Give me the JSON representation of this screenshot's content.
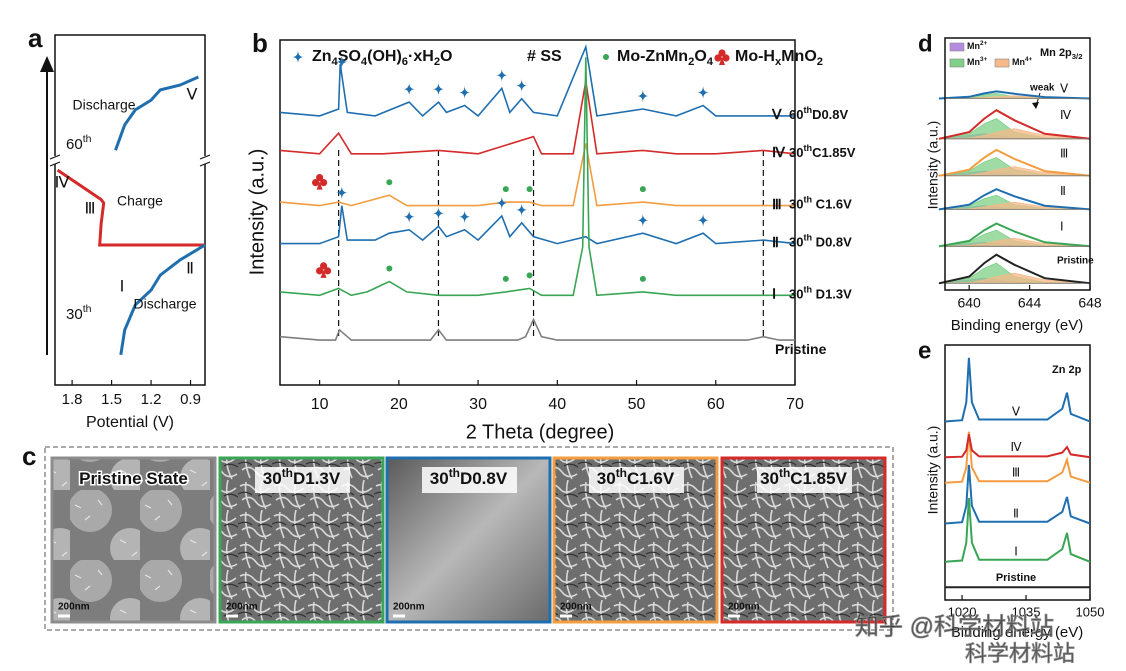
{
  "chart_data": [
    {
      "panel": "a",
      "type": "line",
      "xlabel": "Potential (V)",
      "xlim": [
        1.93,
        0.79
      ],
      "xticks": [
        1.8,
        1.5,
        1.2,
        0.9
      ],
      "ylim": [
        0,
        100
      ],
      "series": [
        {
          "name": "Discharge",
          "color": "#1f6fb0",
          "x": [
            1.47,
            1.4,
            1.32,
            1.2,
            1.13,
            0.98,
            0.84
          ],
          "values": [
            67.1,
            74.3,
            78.6,
            81.4,
            84.3,
            85.7,
            88
          ]
        },
        {
          "name": "Charge",
          "color": "#d42a2a",
          "x": [
            0.79,
            1.59,
            1.58,
            1.56,
            1.58,
            1.91
          ],
          "values": [
            40,
            40,
            46,
            52,
            53,
            61.4
          ]
        },
        {
          "name": "Discharge",
          "color": "#1f6fb0",
          "x": [
            1.43,
            1.4,
            1.32,
            1.2,
            1.13,
            0.98,
            0.79
          ],
          "values": [
            8.6,
            15.7,
            22.9,
            27.1,
            31.4,
            35.7,
            40
          ]
        }
      ],
      "cycles": [
        [
          "60",
          "th"
        ],
        [
          "30",
          "th"
        ]
      ],
      "stages": [
        {
          "label": "Ⅴ",
          "color": "#1f6fb0"
        },
        {
          "label": "Ⅳ",
          "color": "#d42a2a"
        },
        {
          "label": "Ⅲ",
          "color": "#f39c40"
        },
        {
          "label": "Ⅱ",
          "color": "#1f6fb0"
        },
        {
          "label": "Ⅰ",
          "color": "#3aa655"
        }
      ]
    },
    {
      "panel": "b",
      "type": "line",
      "xlabel": "2 Theta (degree)",
      "ylabel": "Intensity (a.u.)",
      "xlim": [
        5,
        70
      ],
      "xticks": [
        10,
        20,
        30,
        40,
        50,
        60,
        70
      ],
      "ylim": [
        0,
        100
      ],
      "legend": [
        {
          "symbol": "diamond",
          "color": "#1f6fb0",
          "text": [
            "Zn",
            "4",
            "SO",
            "4",
            "(OH)",
            "6",
            "·xH",
            "2",
            "O"
          ]
        },
        {
          "text": [
            "# SS"
          ]
        },
        {
          "symbol": "dot",
          "color": "#3aa655",
          "text": [
            "Mo-ZnMn",
            "2",
            "O",
            "4"
          ]
        },
        {
          "symbol": "club",
          "color": "#d42a2a",
          "text": [
            "Mo-H",
            "x",
            "MnO",
            "2"
          ]
        }
      ],
      "dashed_lines": [
        12.4,
        25,
        37,
        66
      ],
      "series": [
        {
          "name": "Ⅴ",
          "cycle": [
            "60",
            "th",
            "D0.8V"
          ],
          "color": "#1f6fb0",
          "x": [
            5,
            10,
            12.4,
            12.6,
            13.5,
            17,
            21.3,
            23,
            25,
            26,
            28.3,
            30,
            33,
            34,
            35.5,
            37,
            40,
            43.6,
            45,
            50.8,
            55,
            58.4,
            60,
            66,
            70
          ],
          "values": [
            79,
            78,
            80,
            93,
            79,
            78,
            82,
            78,
            82,
            79,
            81,
            78,
            86,
            79,
            83,
            79,
            78,
            98,
            78,
            80,
            78,
            81,
            78,
            78,
            78
          ],
          "diamonds": [
            12.8,
            21.3,
            25,
            28.3,
            33,
            35.5,
            50.8,
            58.4
          ]
        },
        {
          "name": "Ⅳ",
          "cycle": [
            "30",
            "th",
            "C1.85V"
          ],
          "color": "#d42a2a",
          "x": [
            5,
            10,
            12.4,
            14,
            18,
            25,
            30,
            37,
            38,
            42,
            43.6,
            45,
            50.8,
            55,
            60,
            66,
            70
          ],
          "values": [
            68,
            67,
            73,
            67,
            67,
            68,
            67,
            72,
            67,
            67,
            88,
            67,
            68,
            67,
            67,
            68,
            67
          ]
        },
        {
          "name": "Ⅲ",
          "cycle": [
            "30",
            "th",
            " C1.6V"
          ],
          "color": "#f39c40",
          "x": [
            5,
            10,
            12.4,
            14,
            18.8,
            21,
            25,
            30,
            33.5,
            36.5,
            38,
            42,
            43.6,
            45,
            50.8,
            55,
            60,
            66,
            70
          ],
          "values": [
            53,
            52,
            53,
            52,
            55,
            52,
            52,
            52,
            53,
            53,
            52,
            52,
            70,
            52,
            53,
            52,
            52,
            52,
            52
          ],
          "dots": [
            18.8,
            33.5,
            36.5,
            50.8
          ],
          "clubs": [
            10
          ]
        },
        {
          "name": "Ⅱ",
          "cycle": [
            "30",
            "th",
            " D0.8V"
          ],
          "color": "#1f6fb0",
          "x": [
            5,
            10,
            12.4,
            12.8,
            13.5,
            17,
            18.8,
            21.3,
            23,
            25,
            26,
            28.3,
            30,
            33,
            34,
            35.5,
            37,
            40,
            43.6,
            45,
            50.8,
            55,
            58.4,
            60,
            66,
            70
          ],
          "values": [
            41,
            41,
            43,
            52,
            42,
            42,
            44,
            45,
            42,
            46,
            43,
            45,
            42,
            49,
            43,
            47,
            43,
            41,
            43,
            41,
            44,
            41,
            44,
            41,
            42,
            41
          ],
          "diamonds": [
            12.8,
            21.3,
            25,
            28.3,
            33,
            35.5,
            50.8,
            58.4
          ]
        },
        {
          "name": "Ⅰ",
          "cycle": [
            "30",
            "th",
            " D1.3V"
          ],
          "color": "#3aa655",
          "x": [
            5,
            10,
            12.4,
            14,
            16,
            18.8,
            21,
            25,
            30,
            33.5,
            36.5,
            38,
            42,
            43.2,
            43.6,
            44,
            45,
            50.8,
            55,
            60,
            66,
            70
          ],
          "values": [
            27,
            26,
            28,
            26,
            27,
            30,
            27,
            26,
            26,
            27,
            28,
            26,
            26,
            40,
            95,
            40,
            26,
            27,
            26,
            26,
            26,
            26
          ],
          "dots": [
            18.8,
            33.5,
            36.5,
            50.8
          ],
          "clubs": [
            10.5
          ]
        },
        {
          "name": "Pristine",
          "color": "#7f7f7f",
          "x": [
            5,
            10,
            12,
            12.5,
            14,
            20,
            24,
            25,
            26,
            30,
            35,
            36,
            37,
            38,
            40,
            45,
            50,
            55,
            60,
            64,
            66,
            68,
            70
          ],
          "values": [
            14,
            13,
            13,
            16,
            13,
            13,
            13,
            16,
            13,
            13,
            13,
            14,
            19,
            14,
            13,
            13,
            13,
            13,
            13,
            13,
            14,
            13,
            13
          ]
        }
      ]
    },
    {
      "panel": "d",
      "type": "line",
      "xlabel": "Binding energy (eV)",
      "ylabel": "Intensity (a.u.)",
      "xlim": [
        638.4,
        648
      ],
      "xticks": [
        640,
        644,
        648
      ],
      "ylim": [
        0,
        7.5
      ],
      "title": [
        "Mn 2p",
        "3/2"
      ],
      "annotation": "weak",
      "components": [
        {
          "text": [
            "Mn",
            "2+"
          ],
          "color": "#b58be0"
        },
        {
          "text": [
            "Mn",
            "3+"
          ],
          "color": "#7fcf86"
        },
        {
          "text": [
            "Mn",
            "4+"
          ],
          "color": "#f5b98a"
        }
      ],
      "x": [
        638,
        640,
        641,
        641.8,
        643,
        645,
        648
      ],
      "series": [
        {
          "name": "Pristine",
          "color": "#222222",
          "values": [
            0.2,
            0.4,
            0.8,
            1.05,
            0.75,
            0.35,
            0.2
          ],
          "components": [
            [
              0.2,
              0.3,
              0.35,
              0.3,
              0.23,
              0.2,
              0.2
            ],
            [
              0.2,
              0.35,
              0.65,
              0.8,
              0.4,
              0.23,
              0.2
            ],
            [
              0.2,
              0.22,
              0.3,
              0.4,
              0.5,
              0.3,
              0.2
            ]
          ]
        },
        {
          "name": "Ⅰ",
          "color": "#3aa655",
          "values": [
            1.3,
            1.46,
            1.78,
            1.98,
            1.74,
            1.42,
            1.3
          ],
          "components": [
            [
              1.3,
              1.38,
              1.42,
              1.38,
              1.32,
              1.3,
              1.3
            ],
            [
              1.3,
              1.42,
              1.66,
              1.78,
              1.46,
              1.32,
              1.3
            ],
            [
              1.3,
              1.32,
              1.38,
              1.46,
              1.54,
              1.38,
              1.3
            ]
          ]
        },
        {
          "name": "Ⅱ",
          "color": "#1f6fb0",
          "values": [
            2.4,
            2.54,
            2.82,
            3.0,
            2.79,
            2.51,
            2.4
          ],
          "components": [
            [
              2.4,
              2.47,
              2.51,
              2.47,
              2.42,
              2.4,
              2.4
            ],
            [
              2.4,
              2.51,
              2.72,
              2.82,
              2.54,
              2.42,
              2.4
            ],
            [
              2.4,
              2.41,
              2.47,
              2.54,
              2.61,
              2.47,
              2.4
            ]
          ]
        },
        {
          "name": "Ⅲ",
          "color": "#f39c40",
          "values": [
            3.4,
            3.58,
            3.94,
            4.17,
            3.9,
            3.54,
            3.4
          ],
          "components": [
            [
              3.4,
              3.49,
              3.54,
              3.49,
              3.43,
              3.4,
              3.4
            ],
            [
              3.4,
              3.54,
              3.81,
              3.94,
              3.58,
              3.43,
              3.4
            ],
            [
              3.4,
              3.42,
              3.49,
              3.58,
              3.67,
              3.49,
              3.4
            ]
          ]
        },
        {
          "name": "Ⅳ",
          "color": "#d42a2a",
          "values": [
            4.5,
            4.7,
            5.1,
            5.35,
            5.05,
            4.65,
            4.5
          ],
          "components": [
            [
              4.5,
              4.6,
              4.65,
              4.6,
              4.53,
              4.5,
              4.5
            ],
            [
              4.5,
              4.65,
              4.95,
              5.1,
              4.7,
              4.53,
              4.5
            ],
            [
              4.5,
              4.52,
              4.6,
              4.7,
              4.8,
              4.6,
              4.5
            ]
          ]
        },
        {
          "name": "Ⅴ",
          "color": "#1f6fb0",
          "values": [
            5.7,
            5.75,
            5.85,
            5.91,
            5.84,
            5.74,
            5.7
          ],
          "components": [
            [
              5.7,
              5.73,
              5.74,
              5.73,
              5.71,
              5.7,
              5.7
            ],
            [
              5.7,
              5.74,
              5.81,
              5.85,
              5.75,
              5.71,
              5.7
            ],
            [
              5.7,
              5.71,
              5.73,
              5.75,
              5.78,
              5.73,
              5.7
            ]
          ]
        }
      ]
    },
    {
      "panel": "e",
      "type": "line",
      "xlabel": "Binding energy (eV)",
      "ylabel": "Intensity (a.u.)",
      "xlim": [
        1016,
        1050
      ],
      "xticks": [
        1020,
        1035,
        1050
      ],
      "ylim": [
        0,
        10
      ],
      "title": "Zn 2p",
      "x": [
        1016,
        1020,
        1021,
        1021.6,
        1022.3,
        1024,
        1040,
        1043.5,
        1044.6,
        1045.5,
        1050
      ],
      "series": [
        {
          "name": "Pristine",
          "color": "#222222",
          "values": [
            0.5,
            0.5,
            0.5,
            0.5,
            0.5,
            0.5,
            0.5,
            0.5,
            0.5,
            0.5,
            0.5
          ]
        },
        {
          "name": "Ⅰ",
          "color": "#3aa655",
          "values": [
            1.5,
            1.55,
            2.25,
            4.0,
            2.25,
            1.58,
            1.58,
            2.0,
            2.63,
            1.8,
            1.5
          ]
        },
        {
          "name": "Ⅱ",
          "color": "#1f6fb0",
          "values": [
            3.0,
            3.05,
            3.69,
            5.3,
            3.69,
            3.07,
            3.07,
            3.46,
            4.04,
            3.28,
            3.0
          ]
        },
        {
          "name": "Ⅲ",
          "color": "#f39c40",
          "values": [
            4.6,
            4.64,
            5.2,
            6.6,
            5.2,
            4.66,
            4.66,
            5.0,
            5.5,
            4.84,
            4.6
          ]
        },
        {
          "name": "Ⅳ",
          "color": "#d42a2a",
          "values": [
            5.6,
            5.62,
            5.87,
            6.5,
            5.87,
            5.63,
            5.63,
            5.78,
            6.0,
            5.71,
            5.6
          ]
        },
        {
          "name": "Ⅴ",
          "color": "#1f6fb0",
          "values": [
            7.0,
            7.05,
            7.75,
            9.5,
            7.75,
            7.08,
            7.08,
            7.5,
            8.13,
            7.3,
            7.0
          ]
        }
      ]
    }
  ],
  "panel_c": {
    "panel": "c",
    "images": [
      {
        "label": [
          "Pristine State"
        ],
        "scale": "200nm",
        "color": "#8c8c8c"
      },
      {
        "label": [
          "30",
          "th",
          "D1.3V"
        ],
        "scale": "200nm",
        "color": "#3aa655"
      },
      {
        "label": [
          "30",
          "th",
          "D0.8V"
        ],
        "scale": "200nm",
        "color": "#1f6fb0"
      },
      {
        "label": [
          "30",
          "th",
          "C1.6V"
        ],
        "scale": "200nm",
        "color": "#f39c40"
      },
      {
        "label": [
          "30",
          "th",
          "C1.85V"
        ],
        "scale": "200nm",
        "color": "#d42a2a"
      }
    ]
  },
  "watermark": [
    "知乎 @科学材料站",
    "科学材料站"
  ]
}
